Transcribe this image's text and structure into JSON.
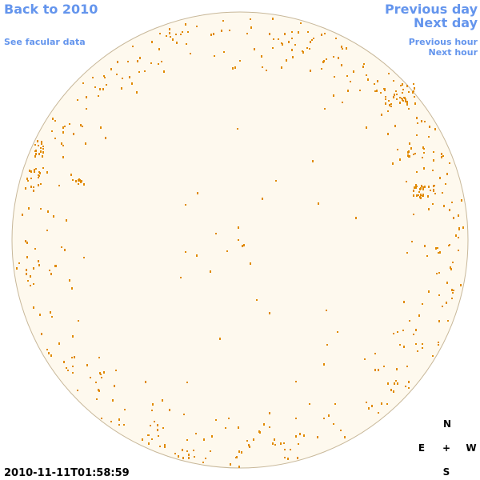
{
  "header": {
    "back_link": "Back to 2010",
    "facular_link": "See facular data",
    "previous_day": "Previous day",
    "next_day": "Next day",
    "previous_hour": "Previous hour",
    "next_hour": "Next hour"
  },
  "timestamp": "2010-11-11T01:58:59",
  "compass": {
    "north": "N",
    "east": "E",
    "center": "+",
    "west": "W",
    "south": "S"
  }
}
